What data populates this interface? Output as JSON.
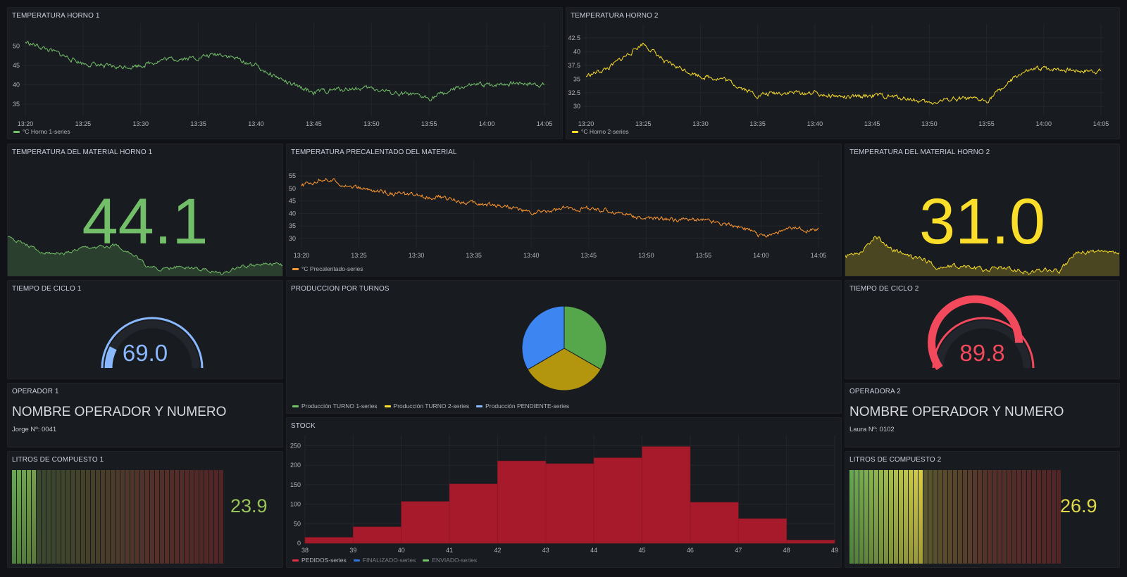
{
  "panels": {
    "horno1": {
      "title": "TEMPERATURA HORNO 1",
      "legend": "°C Horno 1-series",
      "color": "#73bf69",
      "y_ticks": [
        "50",
        "45",
        "40",
        "35"
      ],
      "x_ticks": [
        "13:20",
        "13:25",
        "13:30",
        "13:35",
        "13:40",
        "13:45",
        "13:50",
        "13:55",
        "14:00",
        "14:05"
      ]
    },
    "horno2": {
      "title": "TEMPERATURA HORNO 2",
      "legend": "°C Horno 2-series",
      "color": "#fade2a",
      "y_ticks": [
        "42.5",
        "40",
        "37.5",
        "35",
        "32.5",
        "30"
      ],
      "x_ticks": [
        "13:20",
        "13:25",
        "13:30",
        "13:35",
        "13:40",
        "13:45",
        "13:50",
        "13:55",
        "14:00",
        "14:05"
      ]
    },
    "material1": {
      "title": "TEMPERATURA DEL MATERIAL HORNO 1",
      "value": "44.1",
      "color": "#73bf69"
    },
    "precalentado": {
      "title": "TEMPERATURA PRECALENTADO DEL MATERIAL",
      "legend": "°C Precalentado-series",
      "color": "#ff9830",
      "y_ticks": [
        "55",
        "50",
        "45",
        "40",
        "35",
        "30"
      ],
      "x_ticks": [
        "13:20",
        "13:25",
        "13:30",
        "13:35",
        "13:40",
        "13:45",
        "13:50",
        "13:55",
        "14:00",
        "14:05"
      ]
    },
    "material2": {
      "title": "TEMPERATURA DEL MATERIAL HORNO 2",
      "value": "31.0",
      "color": "#fade2a"
    },
    "ciclo1": {
      "title": "TIEMPO DE CICLO 1",
      "value": "69.0",
      "color": "#8ab8ff"
    },
    "produccion": {
      "title": "PRODUCCION POR TURNOS",
      "legend": [
        "Producción TURNO 1-series",
        "Producción TURNO 2-series",
        "Producción PENDIENTE-series"
      ],
      "colors": [
        "#73bf69",
        "#fade2a",
        "#8ab8ff"
      ]
    },
    "ciclo2": {
      "title": "TIEMPO DE CICLO 2",
      "value": "89.8",
      "color": "#f2495c"
    },
    "operador1": {
      "title": "OPERADOR 1",
      "name": "NOMBRE OPERADOR Y NUMERO",
      "detail": "Jorge Nº: 0041"
    },
    "stock": {
      "title": "STOCK",
      "y_ticks": [
        "250",
        "200",
        "150",
        "100",
        "50",
        "0"
      ],
      "x_ticks": [
        "38",
        "39",
        "40",
        "41",
        "42",
        "43",
        "44",
        "45",
        "46",
        "47",
        "48",
        "49"
      ],
      "legend": [
        "PEDIDOS-series",
        "FINALIZADO-series",
        "ENVIADO-series"
      ],
      "legend_colors": [
        "#e02f44",
        "#3274d9",
        "#73bf69"
      ]
    },
    "operadora2": {
      "title": "OPERADORA 2",
      "name": "NOMBRE OPERADOR Y NUMERO",
      "detail": "Laura Nº: 0102"
    },
    "litros1": {
      "title": "LITROS DE COMPUESTO 1",
      "value": "23.9",
      "color": "#99c45a"
    },
    "litros2": {
      "title": "LITROS DE COMPUESTO 2",
      "value": "26.9",
      "color": "#e0d94a"
    }
  },
  "chart_data": [
    {
      "type": "line",
      "title": "TEMPERATURA HORNO 1",
      "series": [
        {
          "name": "°C Horno 1-series",
          "x": [
            "13:20",
            "13:22",
            "13:25",
            "13:28",
            "13:30",
            "13:32",
            "13:35",
            "13:37",
            "13:40",
            "13:43",
            "13:45",
            "13:48",
            "13:50",
            "13:52",
            "13:55",
            "13:58",
            "14:00",
            "14:03",
            "14:05"
          ],
          "values": [
            51,
            49,
            45.5,
            44.5,
            45,
            46.5,
            47,
            48,
            45,
            40,
            38,
            39,
            39,
            38,
            36.5,
            39.5,
            40,
            40.5,
            40
          ]
        }
      ],
      "ylim": [
        33,
        53
      ]
    },
    {
      "type": "line",
      "title": "TEMPERATURA HORNO 2",
      "series": [
        {
          "name": "°C Horno 2-series",
          "x": [
            "13:20",
            "13:22",
            "13:25",
            "13:27",
            "13:30",
            "13:32",
            "13:35",
            "13:37",
            "13:40",
            "13:43",
            "13:45",
            "13:48",
            "13:50",
            "13:52",
            "13:55",
            "13:58",
            "14:00",
            "14:03",
            "14:05"
          ],
          "values": [
            35.5,
            37,
            41.5,
            38,
            35.5,
            35,
            32,
            32.5,
            32.5,
            31.5,
            32,
            31.5,
            30.5,
            31.5,
            31,
            36,
            37,
            36.5,
            36.5
          ]
        }
      ],
      "ylim": [
        29,
        43
      ]
    },
    {
      "type": "line",
      "title": "TEMPERATURA PRECALENTADO DEL MATERIAL",
      "series": [
        {
          "name": "°C Precalentado-series",
          "x": [
            "13:20",
            "13:22",
            "13:25",
            "13:28",
            "13:30",
            "13:32",
            "13:35",
            "13:38",
            "13:40",
            "13:43",
            "13:45",
            "13:48",
            "13:50",
            "13:53",
            "13:55",
            "13:58",
            "14:00",
            "14:03",
            "14:05"
          ],
          "values": [
            51,
            54,
            50,
            48,
            47,
            46.5,
            44,
            43,
            40,
            42,
            42,
            40,
            38,
            37.5,
            37.5,
            35,
            31,
            34,
            33
          ]
        }
      ],
      "ylim": [
        28,
        57
      ]
    },
    {
      "type": "pie",
      "title": "PRODUCCION POR TURNOS",
      "labels": [
        "Producción TURNO 1-series",
        "Producción TURNO 2-series",
        "Producción PENDIENTE-series"
      ],
      "values": [
        33.3,
        33.3,
        33.4
      ]
    },
    {
      "type": "bar",
      "title": "STOCK",
      "bin_edges": [
        38,
        39,
        40,
        41,
        42,
        43,
        44,
        45,
        46,
        47,
        48,
        49
      ],
      "series": [
        {
          "name": "PEDIDOS-series",
          "values": [
            15,
            42,
            107,
            152,
            211,
            204,
            219,
            248,
            105,
            63,
            8
          ]
        }
      ],
      "ylim": [
        0,
        260
      ]
    }
  ]
}
